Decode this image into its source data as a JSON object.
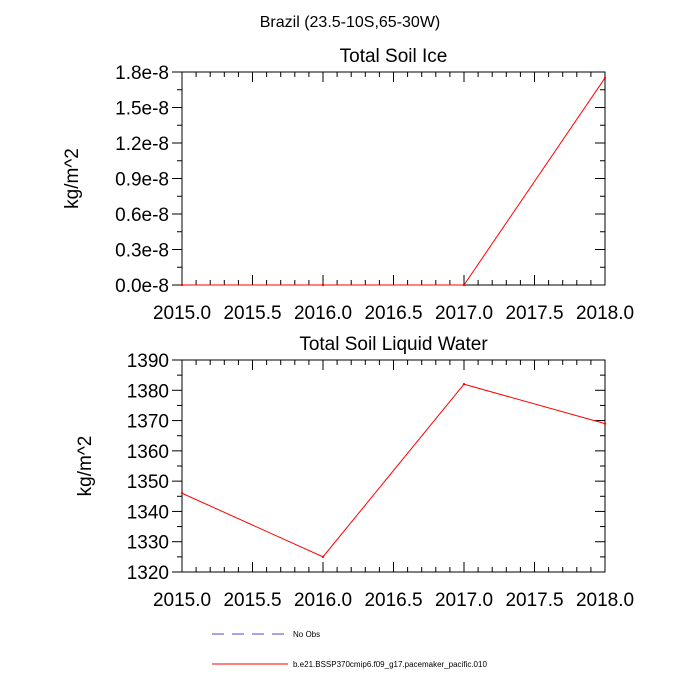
{
  "figure_title": "Brazil (23.5-10S,65-30W)",
  "legend": {
    "entries": [
      {
        "label": "No Obs",
        "color": "#4b4bcc",
        "style": "dashed"
      },
      {
        "label": "b.e21.BSSP370cmip6.f09_g17.pacemaker_pacific.010",
        "color": "#ff0000",
        "style": "solid"
      }
    ]
  },
  "chart_data": [
    {
      "type": "line",
      "title": "Total Soil Ice",
      "xlabel": "",
      "ylabel": "kg/m^2",
      "xlim": [
        2015.0,
        2018.0
      ],
      "ylim": [
        0.0,
        1.8e-08
      ],
      "xticks": [
        2015.0,
        2015.5,
        2016.0,
        2016.5,
        2017.0,
        2017.5,
        2018.0
      ],
      "xtick_labels": [
        "2015.0",
        "2015.5",
        "2016.0",
        "2016.5",
        "2017.0",
        "2017.5",
        "2018.0"
      ],
      "yticks": [
        0.0,
        3e-09,
        6e-09,
        9e-09,
        1.2e-08,
        1.5e-08,
        1.8e-08
      ],
      "ytick_labels": [
        "0.0e-8",
        "0.3e-8",
        "0.6e-8",
        "0.9e-8",
        "1.2e-8",
        "1.5e-8",
        "1.8e-8"
      ],
      "grid": false,
      "series": [
        {
          "name": "b.e21.BSSP370cmip6.f09_g17.pacemaker_pacific.010",
          "color": "#ff0000",
          "x": [
            2015,
            2016,
            2017,
            2018
          ],
          "y": [
            0.0,
            0.0,
            0.0,
            1.75e-08
          ]
        }
      ]
    },
    {
      "type": "line",
      "title": "Total Soil Liquid Water",
      "xlabel": "",
      "ylabel": "kg/m^2",
      "xlim": [
        2015.0,
        2018.0
      ],
      "ylim": [
        1320,
        1390
      ],
      "xticks": [
        2015.0,
        2015.5,
        2016.0,
        2016.5,
        2017.0,
        2017.5,
        2018.0
      ],
      "xtick_labels": [
        "2015.0",
        "2015.5",
        "2016.0",
        "2016.5",
        "2017.0",
        "2017.5",
        "2018.0"
      ],
      "yticks": [
        1320,
        1330,
        1340,
        1350,
        1360,
        1370,
        1380,
        1390
      ],
      "ytick_labels": [
        "1320",
        "1330",
        "1340",
        "1350",
        "1360",
        "1370",
        "1380",
        "1390"
      ],
      "grid": false,
      "series": [
        {
          "name": "b.e21.BSSP370cmip6.f09_g17.pacemaker_pacific.010",
          "color": "#ff0000",
          "x": [
            2015,
            2016,
            2017,
            2018
          ],
          "y": [
            1346,
            1325,
            1382,
            1369
          ]
        }
      ]
    }
  ]
}
